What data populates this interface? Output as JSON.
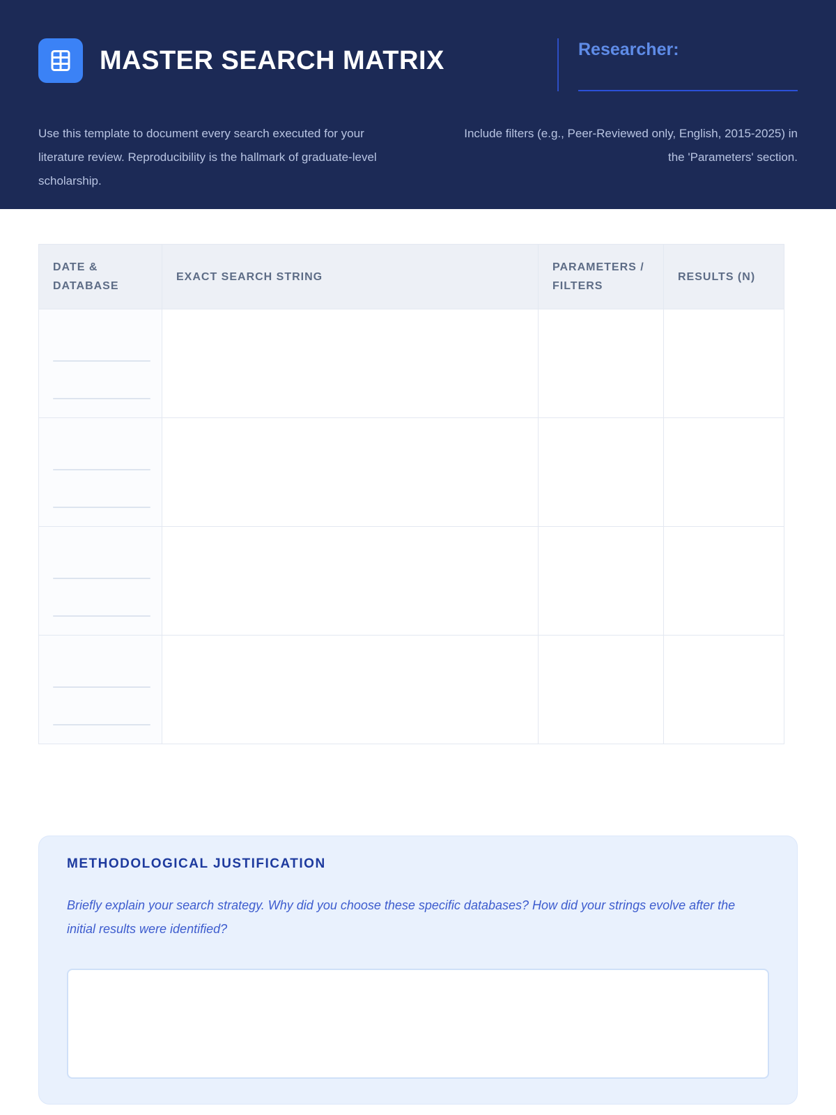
{
  "header": {
    "title": "MASTER SEARCH MATRIX",
    "researcher_label": "Researcher:",
    "researcher_value": "",
    "intro_left": "Use this template to document every search executed for your literature review. Reproducibility is the hallmark of graduate-level scholarship.",
    "intro_right": "Include filters (e.g., Peer-Reviewed only, English, 2015-2025) in the 'Parameters' section."
  },
  "table": {
    "columns": [
      "DATE & DATABASE",
      "EXACT SEARCH STRING",
      "PARAMETERS / FILTERS",
      "RESULTS (N)"
    ],
    "row_count": 4,
    "write_lines_per_date_cell": 2,
    "cell_values": []
  },
  "justification": {
    "title": "METHODOLOGICAL JUSTIFICATION",
    "prompt": "Briefly explain your search strategy. Why did you choose these specific databases? How did your strings evolve after the initial results were identified?",
    "textarea_value": ""
  },
  "icons": {
    "brand": "table-grid-icon"
  },
  "colors": {
    "header_navy": "#1c2a56",
    "icon_blue": "#3b82f6",
    "researcher_label_blue": "#5f8ce8",
    "accent_line_blue": "#2b50d8",
    "intro_text": "#b8c4e2",
    "table_header_bg": "#edf0f6",
    "table_header_text": "#5d6c86",
    "table_border": "#e3e8f1",
    "write_line": "#dde4ef",
    "panel_bg": "#e9f1fd",
    "panel_title_navy": "#1d3a9e",
    "prompt_blue": "#3d5cce",
    "textarea_border": "#cfe0f8"
  }
}
